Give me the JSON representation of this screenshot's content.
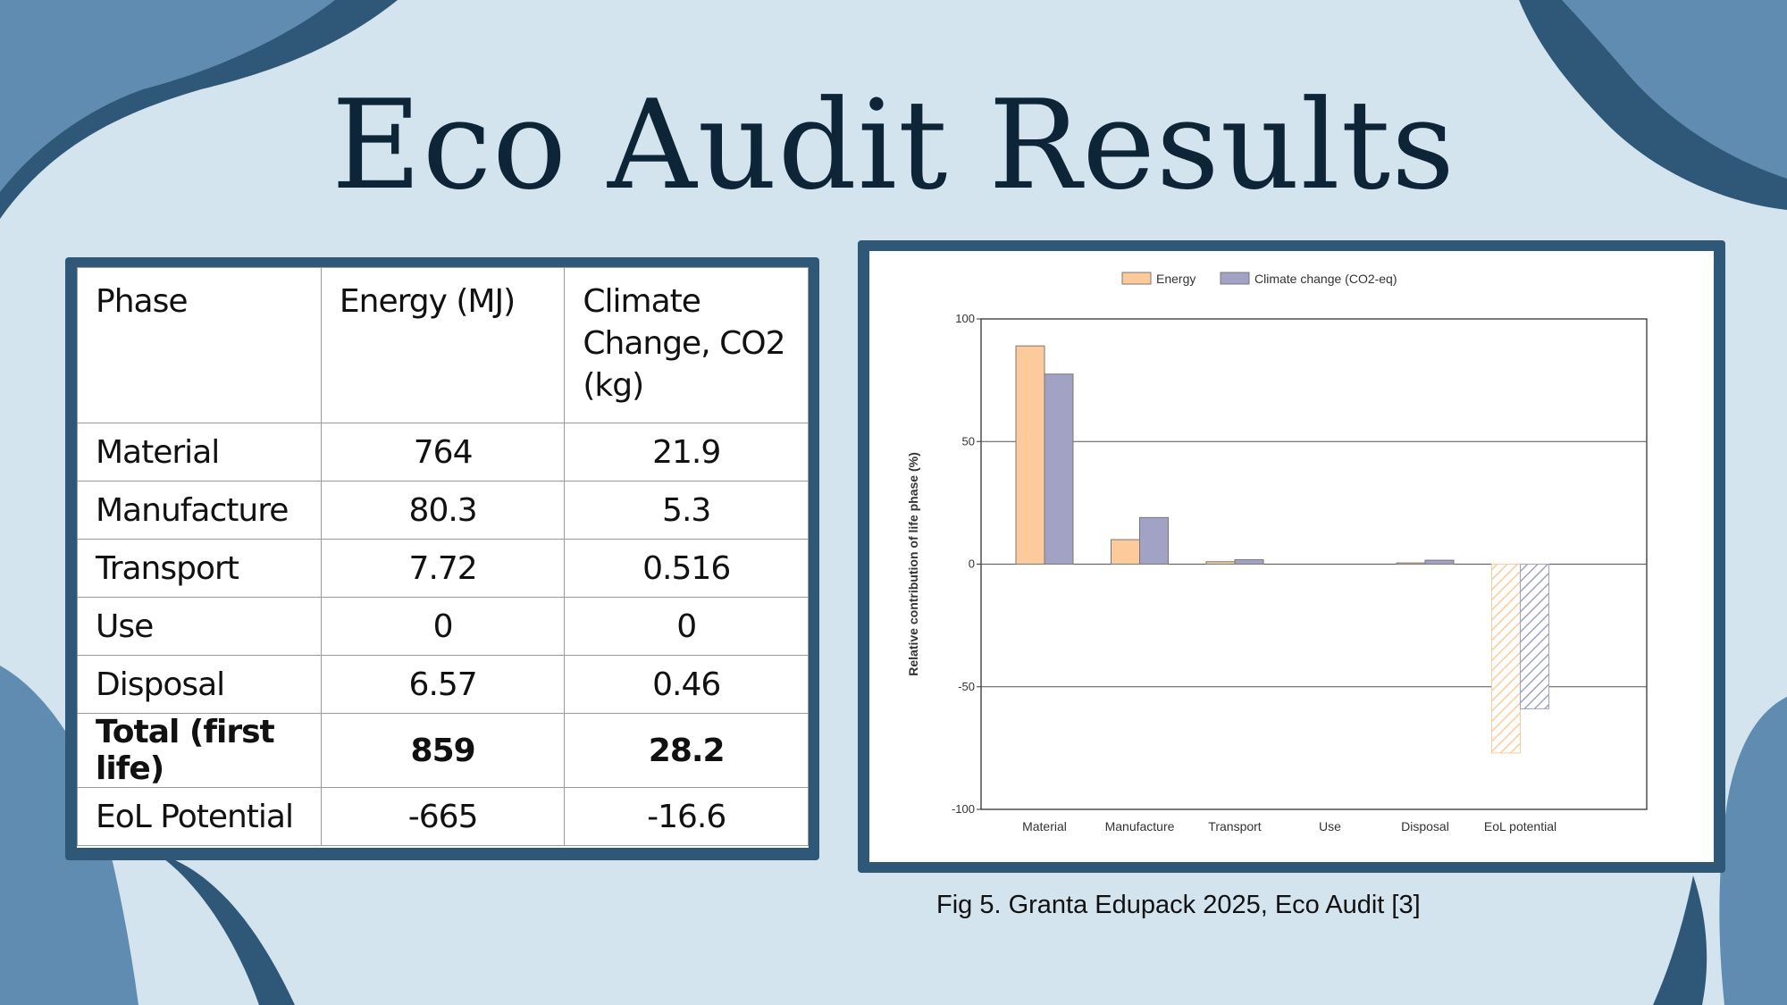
{
  "slide": {
    "title": "Eco Audit Results",
    "caption": "Fig 5. Granta Edupack 2025, Eco Audit [3]"
  },
  "colors": {
    "background": "#d3e4ef",
    "frame": "#2f5878",
    "energy": "#fdcb9b",
    "climate": "#a2a2c4"
  },
  "table": {
    "headers": [
      "Phase",
      "Energy (MJ)",
      "Climate Change, CO2 (kg)"
    ],
    "rows": [
      {
        "phase": "Material",
        "energy": "764",
        "co2": "21.9"
      },
      {
        "phase": "Manufacture",
        "energy": "80.3",
        "co2": "5.3"
      },
      {
        "phase": "Transport",
        "energy": "7.72",
        "co2": "0.516"
      },
      {
        "phase": "Use",
        "energy": "0",
        "co2": "0"
      },
      {
        "phase": "Disposal",
        "energy": "6.57",
        "co2": "0.46"
      },
      {
        "phase": "Total (first life)",
        "energy": "859",
        "co2": "28.2"
      },
      {
        "phase": "EoL Potential",
        "energy": "-665",
        "co2": "-16.6"
      }
    ]
  },
  "chart_data": {
    "type": "bar",
    "categories": [
      "Material",
      "Manufacture",
      "Transport",
      "Use",
      "Disposal",
      "EoL potential"
    ],
    "series": [
      {
        "name": "Energy",
        "values": [
          89,
          10,
          1,
          0,
          0.5,
          -77
        ]
      },
      {
        "name": "Climate change (CO2-eq)",
        "values": [
          77.5,
          19,
          1.8,
          0,
          1.6,
          -59
        ]
      }
    ],
    "hatched_categories": [
      "EoL potential"
    ],
    "ylabel": "Relative contribution of life phase (%)",
    "xlabel": "",
    "ylim": [
      -100,
      100
    ],
    "yticks": [
      100,
      50,
      0,
      -50,
      -100
    ],
    "grid": true,
    "legend": "top"
  }
}
